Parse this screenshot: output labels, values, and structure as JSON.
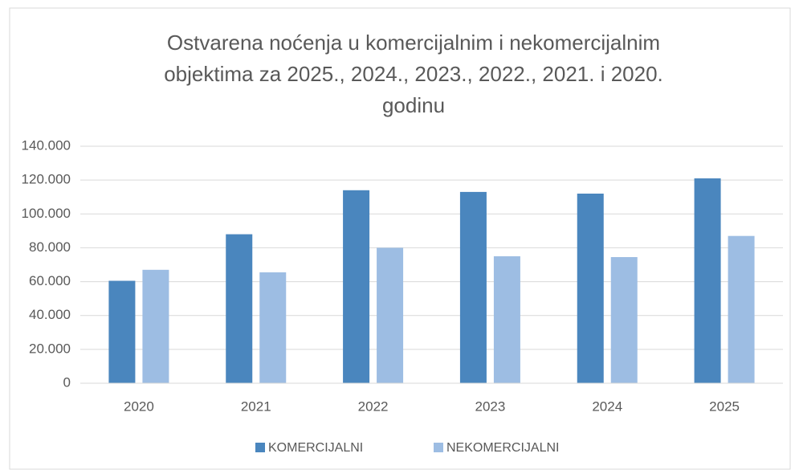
{
  "chart_data": {
    "type": "bar",
    "title": [
      "Ostvarena noćenja u komercijalnim i nekomercijalnim",
      "objektima za 2025., 2024., 2023., 2022., 2021. i 2020.",
      "godinu"
    ],
    "categories": [
      "2020",
      "2021",
      "2022",
      "2023",
      "2024",
      "2025"
    ],
    "series": [
      {
        "name": "KOMERCIJALNI",
        "color": "#4a86be",
        "values": [
          60500,
          88000,
          114000,
          113000,
          112000,
          121000
        ]
      },
      {
        "name": "NEKOMERCIJALNI",
        "color": "#9dbde3",
        "values": [
          67000,
          65500,
          80000,
          75000,
          74500,
          87000
        ]
      }
    ],
    "ylim": [
      0,
      140000
    ],
    "yticks": [
      0,
      {
        "value": 20000,
        "label": "20.000"
      },
      {
        "value": 40000,
        "label": "40.000"
      },
      {
        "value": 60000,
        "label": "60.000"
      },
      {
        "value": 80000,
        "label": "80.000"
      },
      {
        "value": 100000,
        "label": "100.000"
      },
      {
        "value": 120000,
        "label": "120.000"
      },
      {
        "value": 140000,
        "label": "140.000"
      }
    ],
    "grid": true,
    "legend": "bottom"
  }
}
